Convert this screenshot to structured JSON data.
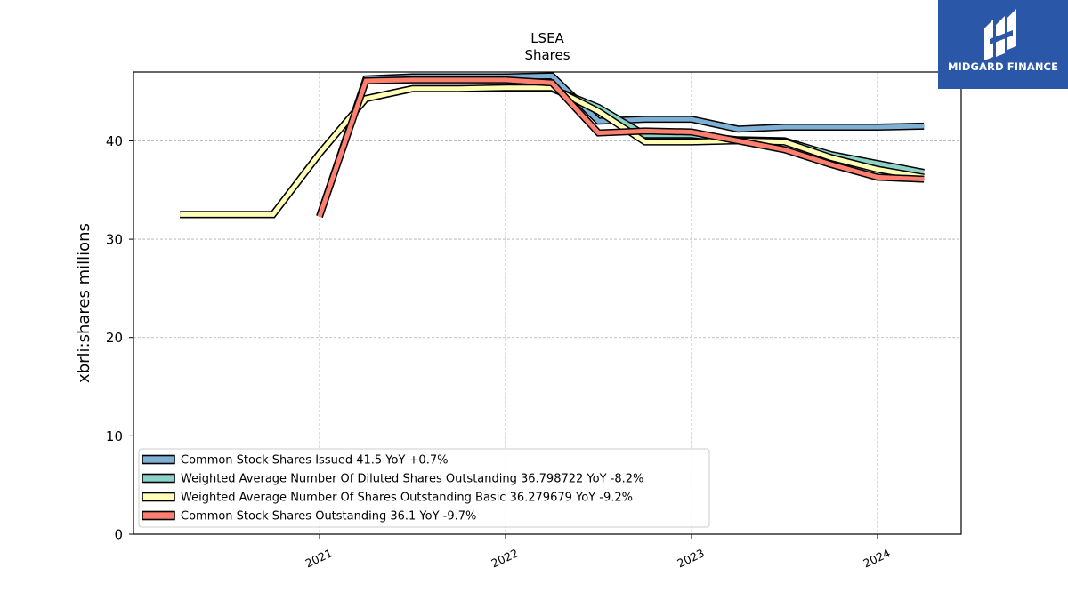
{
  "chart_data": {
    "type": "line",
    "title": "LSEA",
    "subtitle": "Shares",
    "ylabel": "xbrli:shares millions",
    "xlabel": "",
    "ylim": [
      0,
      47
    ],
    "xlim": [
      2020.0,
      2024.45
    ],
    "yticks": [
      0,
      10,
      20,
      30,
      40
    ],
    "xticks": [
      {
        "value": 2021.0,
        "label": "2021"
      },
      {
        "value": 2022.0,
        "label": "2022"
      },
      {
        "value": 2023.0,
        "label": "2023"
      },
      {
        "value": 2024.0,
        "label": "2024"
      }
    ],
    "grid": true,
    "legend_position": "lower-left",
    "series": [
      {
        "name": "Common Stock Shares Issued",
        "legend": "Common Stock Shares Issued  41.5 YoY +0.7%",
        "color": "#7eb0d5",
        "points": [
          [
            2021.0,
            32.3
          ],
          [
            2021.25,
            46.3
          ],
          [
            2021.5,
            46.5
          ],
          [
            2021.75,
            46.5
          ],
          [
            2022.0,
            46.5
          ],
          [
            2022.25,
            46.6
          ],
          [
            2022.5,
            42.0
          ],
          [
            2022.75,
            42.2
          ],
          [
            2023.0,
            42.2
          ],
          [
            2023.25,
            41.2
          ],
          [
            2023.5,
            41.4
          ],
          [
            2023.75,
            41.4
          ],
          [
            2024.0,
            41.4
          ],
          [
            2024.25,
            41.5
          ]
        ]
      },
      {
        "name": "Weighted Average Number Of Diluted Shares Outstanding",
        "legend": "Weighted Average Number Of Diluted Shares Outstanding  36.798722 YoY -8.2%",
        "color": "#8bd3c7",
        "points": [
          [
            2020.25,
            32.5
          ],
          [
            2020.5,
            32.5
          ],
          [
            2020.75,
            32.5
          ],
          [
            2021.0,
            38.7
          ],
          [
            2021.25,
            44.3
          ],
          [
            2021.5,
            45.3
          ],
          [
            2021.75,
            45.3
          ],
          [
            2022.0,
            45.3
          ],
          [
            2022.25,
            45.3
          ],
          [
            2022.5,
            43.4
          ],
          [
            2022.75,
            40.6
          ],
          [
            2023.0,
            40.6
          ],
          [
            2023.25,
            40.1
          ],
          [
            2023.5,
            40.0
          ],
          [
            2023.75,
            38.6
          ],
          [
            2024.0,
            37.7
          ],
          [
            2024.25,
            36.8
          ]
        ]
      },
      {
        "name": "Weighted Average Number Of Shares Outstanding Basic",
        "legend": "Weighted Average Number Of Shares Outstanding Basic  36.279679 YoY -9.2%",
        "color": "#ffffb5",
        "points": [
          [
            2020.25,
            32.5
          ],
          [
            2020.5,
            32.5
          ],
          [
            2020.75,
            32.5
          ],
          [
            2021.0,
            38.7
          ],
          [
            2021.25,
            44.3
          ],
          [
            2021.5,
            45.3
          ],
          [
            2021.75,
            45.3
          ],
          [
            2022.0,
            45.4
          ],
          [
            2022.25,
            45.4
          ],
          [
            2022.5,
            43.0
          ],
          [
            2022.75,
            39.9
          ],
          [
            2023.0,
            39.9
          ],
          [
            2023.25,
            40.0
          ],
          [
            2023.5,
            39.9
          ],
          [
            2023.75,
            38.3
          ],
          [
            2024.0,
            37.1
          ],
          [
            2024.25,
            36.3
          ]
        ]
      },
      {
        "name": "Common Stock Shares Outstanding",
        "legend": "Common Stock Shares Outstanding  36.1 YoY -9.7%",
        "color": "#fd7f6f",
        "points": [
          [
            2021.0,
            32.3
          ],
          [
            2021.25,
            46.1
          ],
          [
            2021.5,
            46.2
          ],
          [
            2021.75,
            46.2
          ],
          [
            2022.0,
            46.2
          ],
          [
            2022.25,
            45.9
          ],
          [
            2022.5,
            40.8
          ],
          [
            2022.75,
            41.0
          ],
          [
            2023.0,
            40.9
          ],
          [
            2023.25,
            40.0
          ],
          [
            2023.5,
            39.1
          ],
          [
            2023.75,
            37.6
          ],
          [
            2024.0,
            36.3
          ],
          [
            2024.25,
            36.1
          ]
        ]
      }
    ]
  },
  "logo": {
    "text": "MIDGARD FINANCE",
    "background": "#2a57a7"
  }
}
